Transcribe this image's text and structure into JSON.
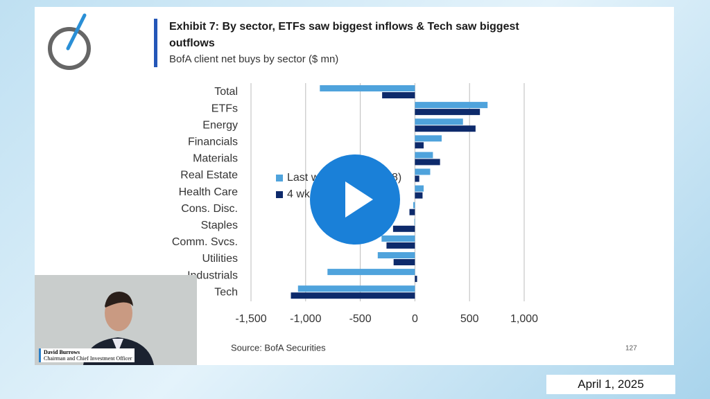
{
  "chart_data": {
    "type": "bar",
    "orientation": "horizontal",
    "title": "Exhibit 7: By sector, ETFs saw biggest inflows & Tech saw biggest outflows",
    "subtitle": "BofA client net buys by sector ($ mn)",
    "source": "Source: BofA Securities",
    "page_number": "127",
    "categories": [
      "Total",
      "ETFs",
      "Energy",
      "Financials",
      "Materials",
      "Real Estate",
      "Health Care",
      "Cons. Disc.",
      "Staples",
      "Comm. Svcs.",
      "Utilities",
      "Industrials",
      "Tech"
    ],
    "series": [
      {
        "name": "Last w",
        "color": "#4fa3dc",
        "values": [
          -870,
          665,
          440,
          245,
          165,
          140,
          80,
          -15,
          -5,
          -305,
          -340,
          -800,
          -1070
        ]
      },
      {
        "name": "4 wk",
        "color": "#0d2a6b",
        "values": [
          -300,
          595,
          555,
          80,
          230,
          40,
          70,
          -50,
          -200,
          -260,
          -195,
          20,
          -1135
        ]
      }
    ],
    "legend_fragment": "8)",
    "xlim": [
      -1500,
      1000
    ],
    "xticks": [
      {
        "value": -1500,
        "label": "-1,500"
      },
      {
        "value": -1000,
        "label": "-1,000"
      },
      -500,
      0,
      500,
      {
        "value": 1000,
        "label": "1,000"
      }
    ],
    "grid": true
  },
  "presenter": {
    "name": "David Burrows",
    "role": "Chairman and Chief Investment Officer"
  },
  "date": "April 1, 2025"
}
